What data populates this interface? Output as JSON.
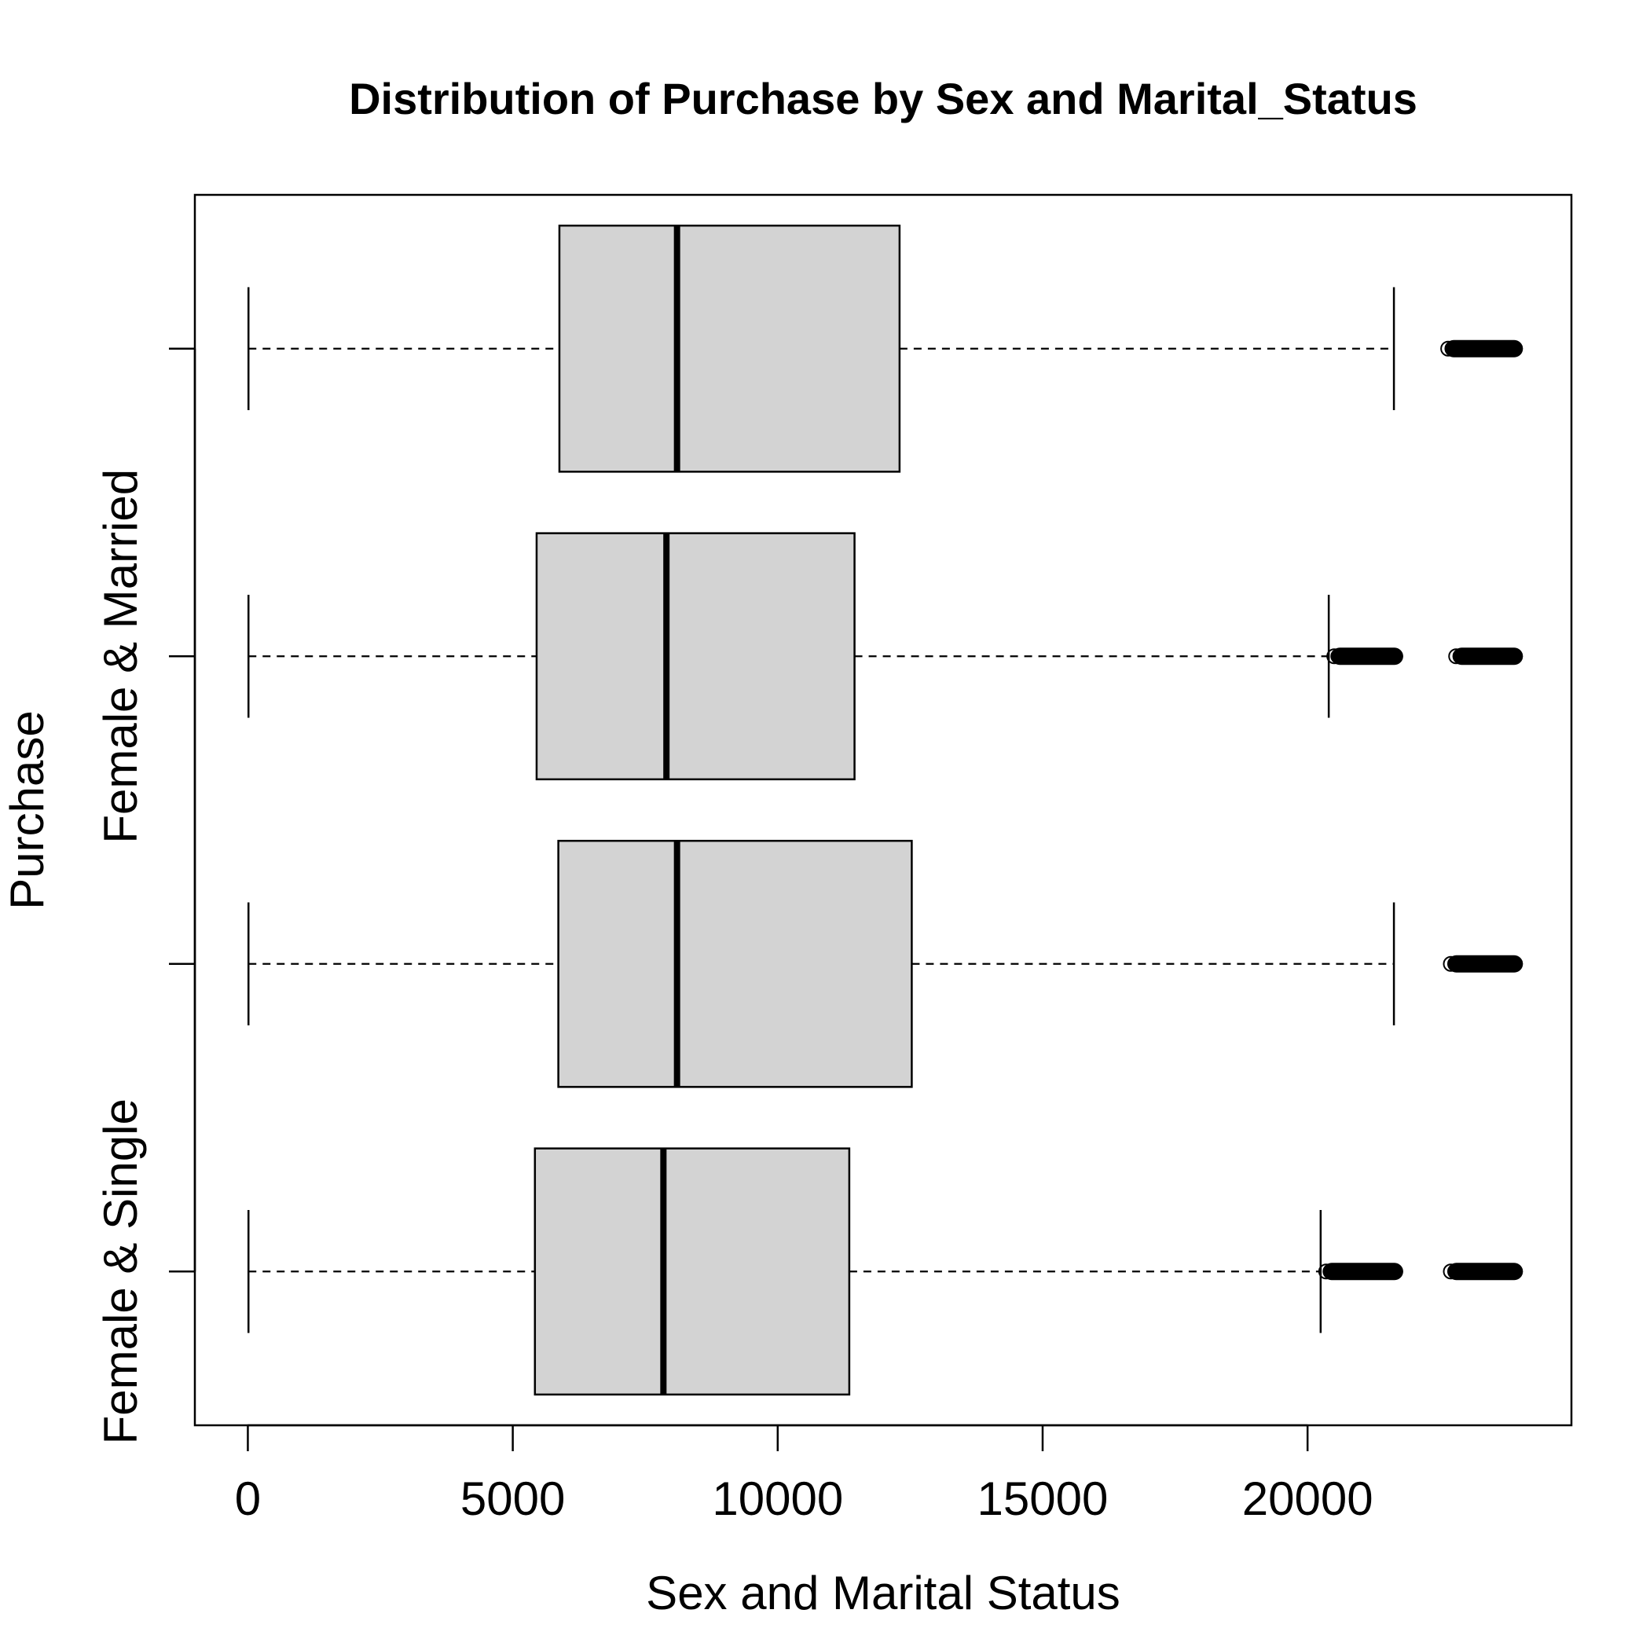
{
  "chart_data": {
    "type": "boxplot",
    "orientation": "horizontal",
    "title": "Distribution of Purchase by Sex and Marital_Status",
    "xlabel": "Sex and Marital Status",
    "ylabel": "Purchase",
    "xlim": [
      -1000,
      24980
    ],
    "xticks": [
      0,
      5000,
      10000,
      15000,
      20000
    ],
    "xtick_labels": [
      "0",
      "5000",
      "10000",
      "15000",
      "20000"
    ],
    "groups": [
      {
        "label": "Female & Single",
        "whisker_low": 12,
        "q1": 5418,
        "median": 7843,
        "q3": 11351,
        "whisker_high": 20247,
        "outlier_ranges": [
          [
            20247,
            21700
          ],
          [
            22600,
            23960
          ]
        ]
      },
      {
        "label": "",
        "whisker_low": 12,
        "q1": 5860,
        "median": 8100,
        "q3": 12530,
        "whisker_high": 21630,
        "outlier_ranges": [
          [
            22600,
            23960
          ]
        ]
      },
      {
        "label": "Female & Married",
        "whisker_low": 12,
        "q1": 5450,
        "median": 7900,
        "q3": 11450,
        "whisker_high": 20400,
        "outlier_ranges": [
          [
            20400,
            21700
          ],
          [
            22700,
            23960
          ]
        ]
      },
      {
        "label": "",
        "whisker_low": 12,
        "q1": 5880,
        "median": 8100,
        "q3": 12300,
        "whisker_high": 21630,
        "outlier_ranges": [
          [
            22550,
            23960
          ]
        ]
      }
    ],
    "box_fill": "#d3d3d3",
    "grid": false
  }
}
